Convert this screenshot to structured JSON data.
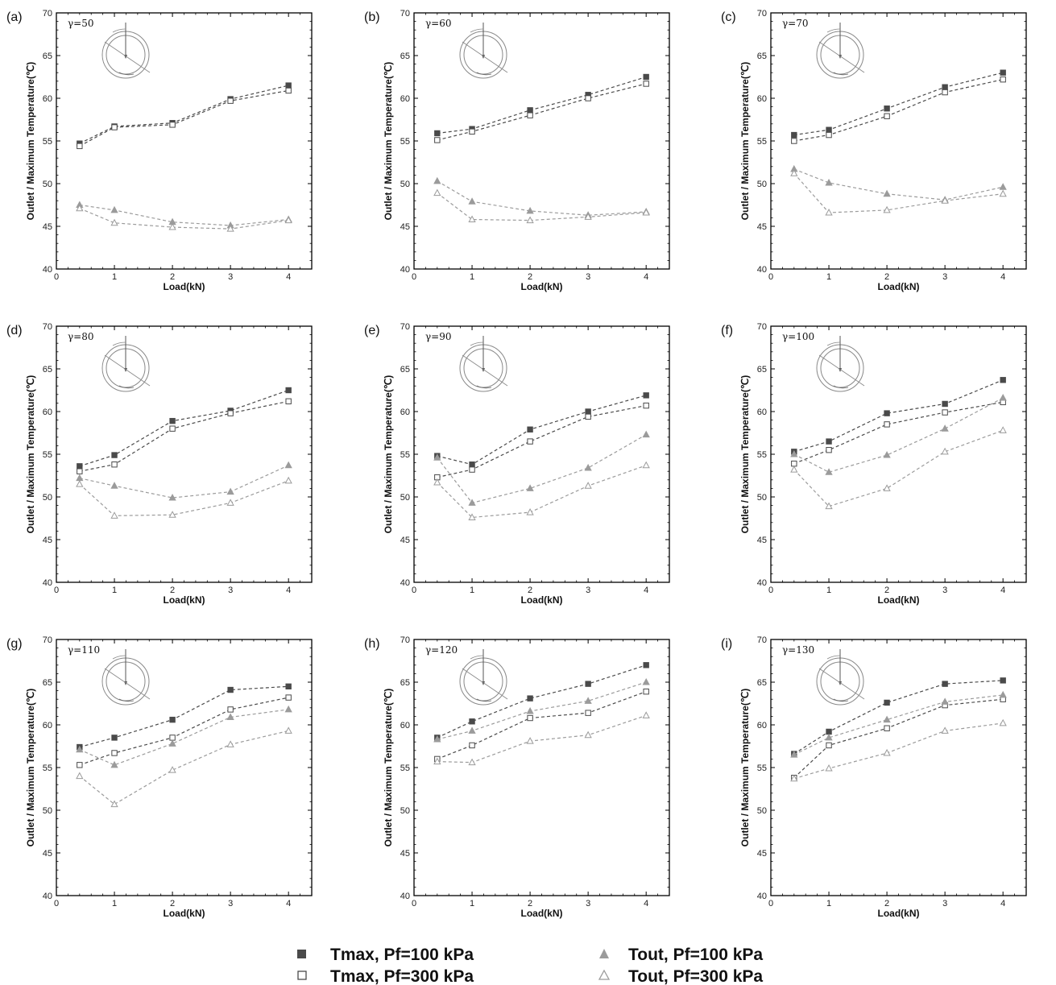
{
  "legend": {
    "items": [
      {
        "label": "Tmax, Pf=100 kPa",
        "marker": "square-filled",
        "color": "#4a4a4a"
      },
      {
        "label": "Tmax, Pf=300 kPa",
        "marker": "square-open",
        "color": "#4a4a4a"
      },
      {
        "label": "Tout, Pf=100 kPa",
        "marker": "triangle-filled",
        "color": "#9b9b9b"
      },
      {
        "label": "Tout, Pf=300 kPa",
        "marker": "triangle-open",
        "color": "#9b9b9b"
      }
    ]
  },
  "chart_data": [
    {
      "panel": "(a)",
      "annotation": "γ=50",
      "type": "line",
      "xlabel": "Load(kN)",
      "ylabel": "Outlet / Maximum Temperature(℃)",
      "xlim": [
        0,
        4.4
      ],
      "ylim": [
        40,
        70
      ],
      "xticks": [
        0,
        1,
        2,
        3,
        4
      ],
      "yticks": [
        40,
        45,
        50,
        55,
        60,
        65,
        70
      ],
      "x": [
        0.4,
        1,
        2,
        3,
        4
      ],
      "series": [
        {
          "name": "Tmax, Pf=100 kPa",
          "values": [
            54.7,
            56.7,
            57.1,
            59.9,
            61.5
          ]
        },
        {
          "name": "Tmax, Pf=300 kPa",
          "values": [
            54.4,
            56.6,
            56.9,
            59.7,
            60.9
          ]
        },
        {
          "name": "Tout, Pf=100 kPa",
          "values": [
            47.5,
            46.9,
            45.5,
            45.1,
            45.8
          ]
        },
        {
          "name": "Tout, Pf=300 kPa",
          "values": [
            47.1,
            45.4,
            44.9,
            44.7,
            45.7
          ]
        }
      ]
    },
    {
      "panel": "(b)",
      "annotation": "γ=60",
      "type": "line",
      "xlabel": "Load(kN)",
      "ylabel": "Outlet / Maximum Temperature(℃)",
      "xlim": [
        0,
        4.4
      ],
      "ylim": [
        40,
        70
      ],
      "xticks": [
        0,
        1,
        2,
        3,
        4
      ],
      "yticks": [
        40,
        45,
        50,
        55,
        60,
        65,
        70
      ],
      "x": [
        0.4,
        1,
        2,
        3,
        4
      ],
      "series": [
        {
          "name": "Tmax, Pf=100 kPa",
          "values": [
            55.9,
            56.4,
            58.6,
            60.4,
            62.5
          ]
        },
        {
          "name": "Tmax, Pf=300 kPa",
          "values": [
            55.1,
            56.1,
            58.0,
            60.0,
            61.7
          ]
        },
        {
          "name": "Tout, Pf=100 kPa",
          "values": [
            50.3,
            47.9,
            46.8,
            46.3,
            46.7
          ]
        },
        {
          "name": "Tout, Pf=300 kPa",
          "values": [
            48.9,
            45.8,
            45.7,
            46.1,
            46.6
          ]
        }
      ]
    },
    {
      "panel": "(c)",
      "annotation": "γ=70",
      "type": "line",
      "xlabel": "Load(kN)",
      "ylabel": "Outlet / Maximum Temperature(℃)",
      "xlim": [
        0,
        4.4
      ],
      "ylim": [
        40,
        70
      ],
      "xticks": [
        0,
        1,
        2,
        3,
        4
      ],
      "yticks": [
        40,
        45,
        50,
        55,
        60,
        65,
        70
      ],
      "x": [
        0.4,
        1,
        2,
        3,
        4
      ],
      "series": [
        {
          "name": "Tmax, Pf=100 kPa",
          "values": [
            55.7,
            56.3,
            58.8,
            61.3,
            63.0
          ]
        },
        {
          "name": "Tmax, Pf=300 kPa",
          "values": [
            55.0,
            55.7,
            57.9,
            60.7,
            62.2
          ]
        },
        {
          "name": "Tout, Pf=100 kPa",
          "values": [
            51.7,
            50.1,
            48.8,
            48.1,
            49.6
          ]
        },
        {
          "name": "Tout, Pf=300 kPa",
          "values": [
            51.2,
            46.6,
            46.9,
            48.0,
            48.8
          ]
        }
      ]
    },
    {
      "panel": "(d)",
      "annotation": "γ=80",
      "type": "line",
      "xlabel": "Load(kN)",
      "ylabel": "Outlet / Maximum Temperature(℃)",
      "xlim": [
        0,
        4.4
      ],
      "ylim": [
        40,
        70
      ],
      "xticks": [
        0,
        1,
        2,
        3,
        4
      ],
      "yticks": [
        40,
        45,
        50,
        55,
        60,
        65,
        70
      ],
      "x": [
        0.4,
        1,
        2,
        3,
        4
      ],
      "series": [
        {
          "name": "Tmax, Pf=100 kPa",
          "values": [
            53.6,
            54.9,
            58.9,
            60.1,
            62.5
          ]
        },
        {
          "name": "Tmax, Pf=300 kPa",
          "values": [
            53.0,
            53.8,
            58.0,
            59.8,
            61.2
          ]
        },
        {
          "name": "Tout, Pf=100 kPa",
          "values": [
            52.2,
            51.3,
            49.9,
            50.6,
            53.7
          ]
        },
        {
          "name": "Tout, Pf=300 kPa",
          "values": [
            51.5,
            47.8,
            47.9,
            49.3,
            51.9
          ]
        }
      ]
    },
    {
      "panel": "(e)",
      "annotation": "γ=90",
      "type": "line",
      "xlabel": "Load(kN)",
      "ylabel": "Outlet / Maximum Temperature(℃)",
      "xlim": [
        0,
        4.4
      ],
      "ylim": [
        40,
        70
      ],
      "xticks": [
        0,
        1,
        2,
        3,
        4
      ],
      "yticks": [
        40,
        45,
        50,
        55,
        60,
        65,
        70
      ],
      "x": [
        0.4,
        1,
        2,
        3,
        4
      ],
      "series": [
        {
          "name": "Tmax, Pf=100 kPa",
          "values": [
            54.8,
            53.8,
            57.9,
            60.0,
            61.9
          ]
        },
        {
          "name": "Tmax, Pf=300 kPa",
          "values": [
            52.3,
            53.2,
            56.5,
            59.4,
            60.7
          ]
        },
        {
          "name": "Tout, Pf=100 kPa",
          "values": [
            54.6,
            49.3,
            51.0,
            53.4,
            57.3
          ]
        },
        {
          "name": "Tout, Pf=300 kPa",
          "values": [
            51.7,
            47.6,
            48.2,
            51.3,
            53.7
          ]
        }
      ]
    },
    {
      "panel": "(f)",
      "annotation": "γ=100",
      "type": "line",
      "xlabel": "Load(kN)",
      "ylabel": "Outlet / Maximum Temperature(℃)",
      "xlim": [
        0,
        4.4
      ],
      "ylim": [
        40,
        70
      ],
      "xticks": [
        0,
        1,
        2,
        3,
        4
      ],
      "yticks": [
        40,
        45,
        50,
        55,
        60,
        65,
        70
      ],
      "x": [
        0.4,
        1,
        2,
        3,
        4
      ],
      "series": [
        {
          "name": "Tmax, Pf=100 kPa",
          "values": [
            55.3,
            56.5,
            59.8,
            60.9,
            63.7
          ]
        },
        {
          "name": "Tmax, Pf=300 kPa",
          "values": [
            53.9,
            55.5,
            58.5,
            59.9,
            61.1
          ]
        },
        {
          "name": "Tout, Pf=100 kPa",
          "values": [
            55.0,
            52.9,
            54.9,
            58.0,
            61.6
          ]
        },
        {
          "name": "Tout, Pf=300 kPa",
          "values": [
            53.2,
            48.9,
            51.0,
            55.3,
            57.8
          ]
        }
      ]
    },
    {
      "panel": "(g)",
      "annotation": "γ=110",
      "type": "line",
      "xlabel": "Load(kN)",
      "ylabel": "Outlet / Maximum Temperature(℃)",
      "xlim": [
        0,
        4.4
      ],
      "ylim": [
        40,
        70
      ],
      "xticks": [
        0,
        1,
        2,
        3,
        4
      ],
      "yticks": [
        40,
        45,
        50,
        55,
        60,
        65,
        70
      ],
      "x": [
        0.4,
        1,
        2,
        3,
        4
      ],
      "series": [
        {
          "name": "Tmax, Pf=100 kPa",
          "values": [
            57.4,
            58.5,
            60.6,
            64.1,
            64.5
          ]
        },
        {
          "name": "Tmax, Pf=300 kPa",
          "values": [
            55.3,
            56.7,
            58.5,
            61.8,
            63.2
          ]
        },
        {
          "name": "Tout, Pf=100 kPa",
          "values": [
            57.1,
            55.3,
            57.8,
            60.9,
            61.8
          ]
        },
        {
          "name": "Tout, Pf=300 kPa",
          "values": [
            54.0,
            50.7,
            54.7,
            57.7,
            59.3
          ]
        }
      ]
    },
    {
      "panel": "(h)",
      "annotation": "γ=120",
      "type": "line",
      "xlabel": "Load(kN)",
      "ylabel": "Outlet / Maximum Temperature(℃)",
      "xlim": [
        0,
        4.4
      ],
      "ylim": [
        40,
        70
      ],
      "xticks": [
        0,
        1,
        2,
        3,
        4
      ],
      "yticks": [
        40,
        45,
        50,
        55,
        60,
        65,
        70
      ],
      "x": [
        0.4,
        1,
        2,
        3,
        4
      ],
      "series": [
        {
          "name": "Tmax, Pf=100 kPa",
          "values": [
            58.5,
            60.4,
            63.1,
            64.8,
            67.0
          ]
        },
        {
          "name": "Tmax, Pf=300 kPa",
          "values": [
            56.0,
            57.6,
            60.8,
            61.4,
            63.9
          ]
        },
        {
          "name": "Tout, Pf=100 kPa",
          "values": [
            58.3,
            59.3,
            61.6,
            62.8,
            65.0
          ]
        },
        {
          "name": "Tout, Pf=300 kPa",
          "values": [
            55.7,
            55.6,
            58.1,
            58.8,
            61.1
          ]
        }
      ]
    },
    {
      "panel": "(i)",
      "annotation": "γ=130",
      "type": "line",
      "xlabel": "Load(kN)",
      "ylabel": "Outlet / Maximum Temperature(℃)",
      "xlim": [
        0,
        4.4
      ],
      "ylim": [
        40,
        70
      ],
      "xticks": [
        0,
        1,
        2,
        3,
        4
      ],
      "yticks": [
        40,
        45,
        50,
        55,
        60,
        65,
        70
      ],
      "x": [
        0.4,
        1,
        2,
        3,
        4
      ],
      "series": [
        {
          "name": "Tmax, Pf=100 kPa",
          "values": [
            56.6,
            59.2,
            62.6,
            64.8,
            65.2
          ]
        },
        {
          "name": "Tmax, Pf=300 kPa",
          "values": [
            53.8,
            57.6,
            59.6,
            62.3,
            63.0
          ]
        },
        {
          "name": "Tout, Pf=100 kPa",
          "values": [
            56.5,
            58.5,
            60.6,
            62.7,
            63.5
          ]
        },
        {
          "name": "Tout, Pf=300 kPa",
          "values": [
            53.7,
            54.9,
            56.7,
            59.3,
            60.2
          ]
        }
      ]
    }
  ]
}
